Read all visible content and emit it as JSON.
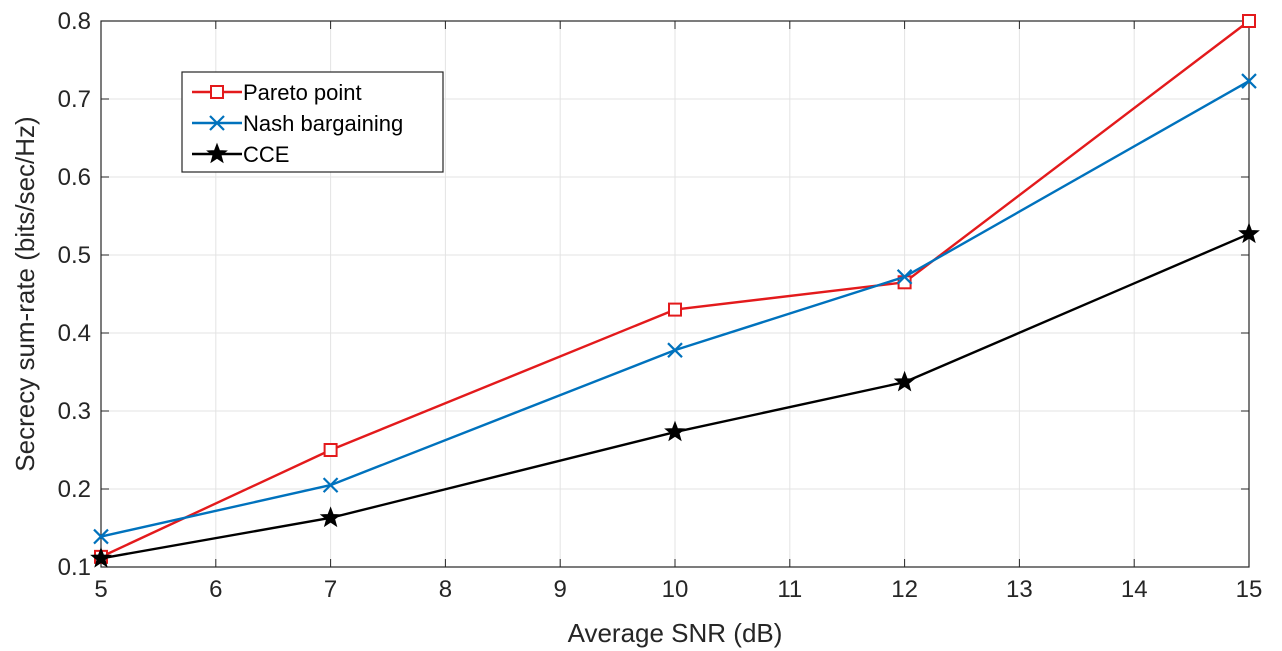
{
  "chart_data": {
    "type": "line",
    "title": "",
    "xlabel": "Average SNR (dB)",
    "ylabel": "Secrecy sum-rate (bits/sec/Hz)",
    "xlim": [
      5,
      15
    ],
    "ylim": [
      0.1,
      0.8
    ],
    "x_ticks": [
      "5",
      "6",
      "7",
      "8",
      "9",
      "10",
      "11",
      "12",
      "13",
      "14",
      "15"
    ],
    "y_ticks": [
      "0.1",
      "0.2",
      "0.3",
      "0.4",
      "0.5",
      "0.6",
      "0.7",
      "0.8"
    ],
    "grid": true,
    "legend_position": "top-left",
    "x": [
      5,
      7,
      10,
      12,
      15
    ],
    "series": [
      {
        "name": "Pareto point",
        "color": "#e31a1c",
        "marker": "square",
        "values": [
          0.113,
          0.25,
          0.43,
          0.465,
          0.8
        ]
      },
      {
        "name": "Nash bargaining",
        "color": "#0072bd",
        "marker": "x",
        "values": [
          0.139,
          0.205,
          0.378,
          0.472,
          0.723
        ]
      },
      {
        "name": "CCE",
        "color": "#000000",
        "marker": "star",
        "values": [
          0.111,
          0.163,
          0.273,
          0.337,
          0.527
        ]
      }
    ]
  }
}
